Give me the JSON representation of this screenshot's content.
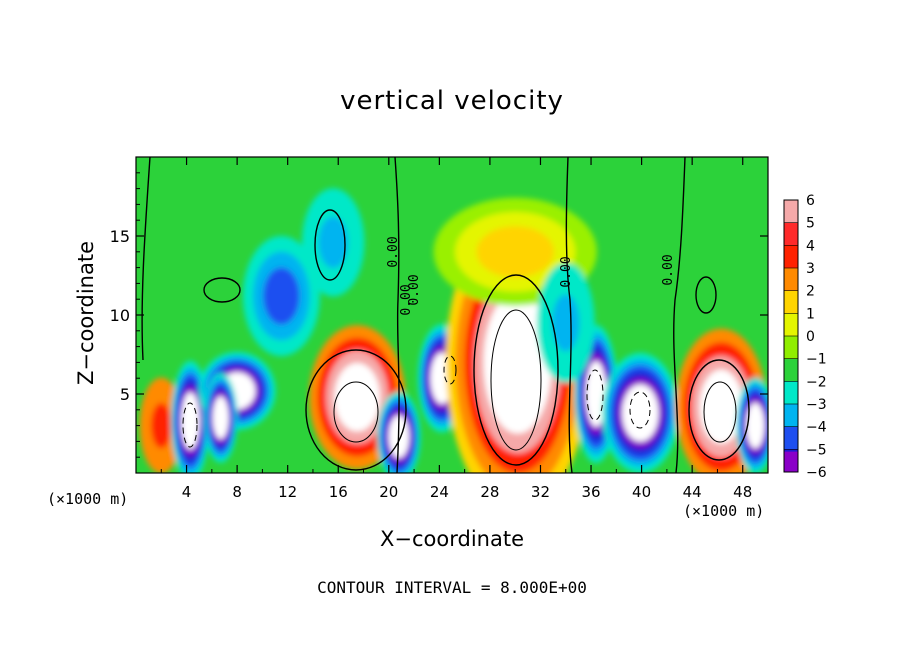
{
  "chart_data": {
    "type": "heatmap",
    "title": "vertical velocity",
    "xlabel": "X−coordinate",
    "ylabel": "Z−coordinate",
    "x_unit": "(×1000 m)",
    "xlim": [
      0,
      50
    ],
    "ylim": [
      0,
      20
    ],
    "x_ticks": [
      4,
      8,
      12,
      16,
      20,
      24,
      28,
      32,
      36,
      40,
      44,
      48
    ],
    "y_ticks": [
      5,
      10,
      15
    ],
    "colorbar": {
      "levels": [
        "6",
        "5",
        "4",
        "3",
        "2",
        "1",
        "0",
        "−1",
        "−2",
        "−3",
        "−4",
        "−5",
        "−6"
      ],
      "colors": [
        "#f5a9a9",
        "#ff2a2a",
        "#ff2200",
        "#ff8a00",
        "#ffd400",
        "#e4f500",
        "#90ee00",
        "#2cd23a",
        "#00e8c8",
        "#00b4f0",
        "#1e4ff0",
        "#1e1ad2",
        "#8a00c8"
      ]
    },
    "contour_labels": [
      "0.00",
      "0.00",
      "0.00",
      "0.00",
      "0.00"
    ],
    "contour_interval": "CONTOUR INTERVAL = 8.000E+00",
    "background_color": "#2cd23a",
    "cells": [
      {
        "x": 2.0,
        "z": 3.0,
        "w": 0.9,
        "h": 1.6,
        "v": 5
      },
      {
        "x": 4.3,
        "z": 3.3,
        "w": 0.8,
        "h": 2.0,
        "v": -7
      },
      {
        "x": 8.0,
        "z": 5.2,
        "w": 1.6,
        "h": 1.3,
        "v": -7
      },
      {
        "x": 6.7,
        "z": 3.5,
        "w": 0.7,
        "h": 1.5,
        "v": -7
      },
      {
        "x": 11.5,
        "z": 11.2,
        "w": 1.6,
        "h": 2.0,
        "v": -3
      },
      {
        "x": 15.6,
        "z": 14.6,
        "w": 1.3,
        "h": 1.8,
        "v": -2
      },
      {
        "x": 17.5,
        "z": 4.8,
        "w": 2.0,
        "h": 2.4,
        "v": 8
      },
      {
        "x": 20.8,
        "z": 2.3,
        "w": 0.9,
        "h": 1.5,
        "v": -7
      },
      {
        "x": 24.2,
        "z": 6.0,
        "w": 1.0,
        "h": 1.8,
        "v": -7
      },
      {
        "x": 30.2,
        "z": 7.0,
        "w": 3.0,
        "h": 5.0,
        "v": 9
      },
      {
        "x": 36.4,
        "z": 5.0,
        "w": 0.9,
        "h": 2.3,
        "v": -7
      },
      {
        "x": 39.9,
        "z": 3.8,
        "w": 1.6,
        "h": 2.0,
        "v": -7
      },
      {
        "x": 46.3,
        "z": 4.2,
        "w": 1.9,
        "h": 2.6,
        "v": 8
      },
      {
        "x": 49.0,
        "z": 3.0,
        "w": 0.8,
        "h": 1.6,
        "v": -7
      },
      {
        "x": 30.0,
        "z": 14.0,
        "w": 3.4,
        "h": 1.8,
        "v": 2
      },
      {
        "x": 34.0,
        "z": 9.5,
        "w": 1.2,
        "h": 2.0,
        "v": -2
      }
    ]
  }
}
